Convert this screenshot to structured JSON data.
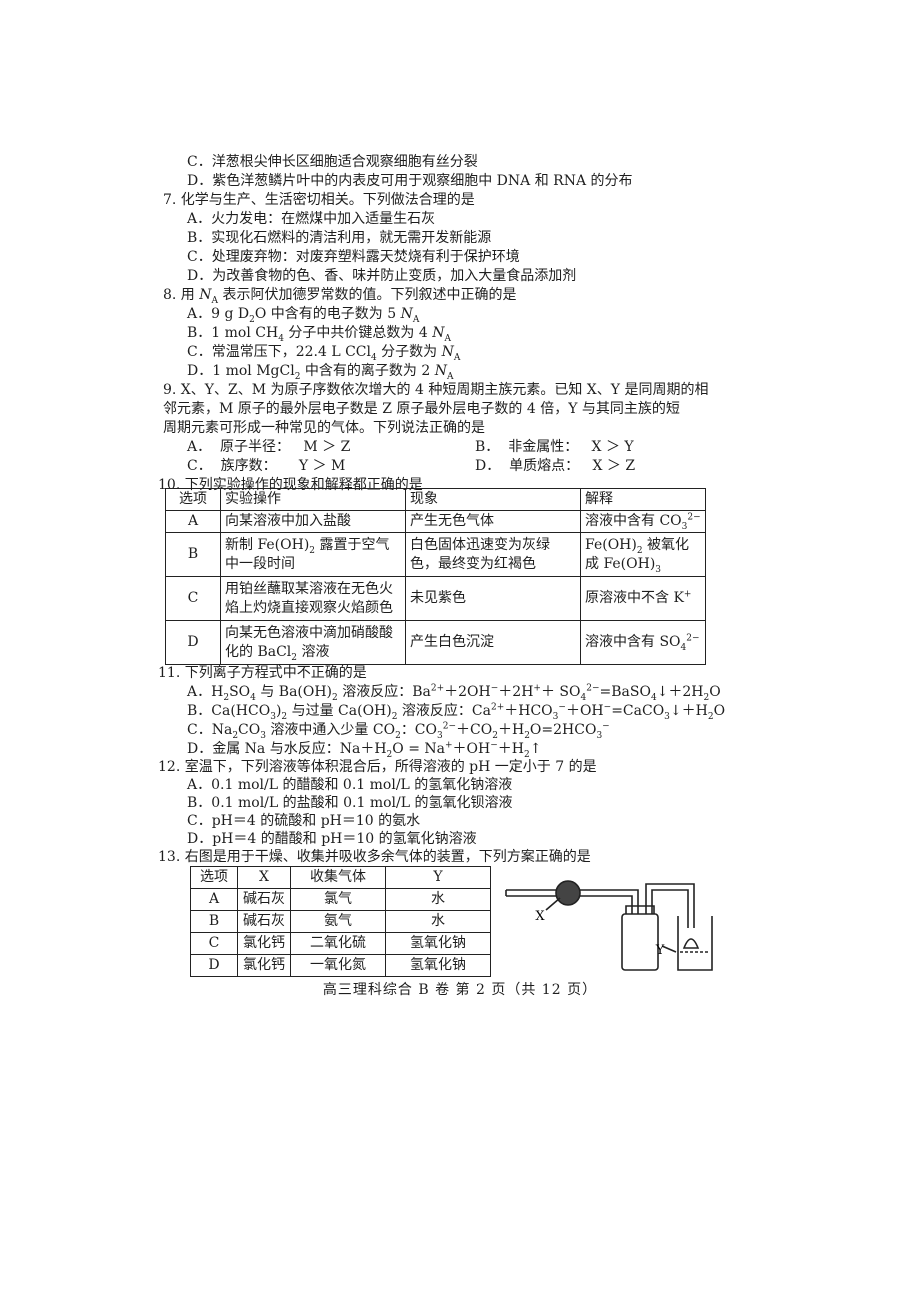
{
  "q6_tail": {
    "options": [
      "C．洋葱根尖伸长区细胞适合观察细胞有丝分裂",
      "D．紫色洋葱鳞片叶中的内表皮可用于观察细胞中 DNA 和 RNA 的分布"
    ]
  },
  "q7": {
    "stem": "7. 化学与生产、生活密切相关。下列做法合理的是",
    "options": [
      "A．火力发电：在燃煤中加入适量生石灰",
      "B．实现化石燃料的清洁利用，就无需开发新能源",
      "C．处理废弃物：对废弃塑料露天焚烧有利于保护环境",
      "D．为改善食物的色、香、味并防止变质，加入大量食品添加剂"
    ]
  },
  "q8": {
    "stem": [
      "8. 用 ",
      {
        "i": "N"
      },
      {
        "sub": "A"
      },
      " 表示阿伏加德罗常数的值。下列叙述中正确的是"
    ],
    "options": [
      [
        "A．9 g D",
        {
          "sub": "2"
        },
        "O 中含有的电子数为 5 ",
        {
          "i": "N"
        },
        {
          "sub": "A"
        }
      ],
      [
        "B．1 mol CH",
        {
          "sub": "4"
        },
        " 分子中共价键总数为 4 ",
        {
          "i": "N"
        },
        {
          "sub": "A"
        }
      ],
      [
        "C．常温常压下，22.4 L CCl",
        {
          "sub": "4"
        },
        " 分子数为 ",
        {
          "i": "N"
        },
        {
          "sub": "A"
        }
      ],
      [
        "D．1 mol MgCl",
        {
          "sub": "2"
        },
        " 中含有的离子数为 2 ",
        {
          "i": "N"
        },
        {
          "sub": "A"
        }
      ]
    ]
  },
  "q9": {
    "stem": [
      "9. X、Y、Z、M 为原子序数依次增大的 4 种短周期主族元素。已知 X、Y 是同周期的相",
      "邻元素，M 原子的最外层电子数是 Z 原子最外层电子数的 4 倍，Y 与其同主族的短",
      "周期元素可形成一种常见的气体。下列说法正确的是"
    ],
    "options": [
      "A．  原子半径：   M ＞ Z",
      "B．  非金属性：   X ＞ Y",
      "C．  族序数：     Y ＞ M",
      "D．  单质熔点：   X ＞ Z"
    ]
  },
  "q10": {
    "stem": "10. 下列实验操作的现象和解释都正确的是",
    "table": {
      "header": [
        "选项",
        "实验操作",
        "现象",
        "解释"
      ],
      "rows": [
        [
          "A",
          "向某溶液中加入盐酸",
          "产生无色气体",
          [
            "溶液中含有 CO",
            {
              "sub": "3"
            },
            {
              "sup": "2−"
            }
          ]
        ],
        [
          "B",
          [
            "新制 Fe(OH)",
            {
              "sub": "2"
            },
            " 露置于空气中一段时间"
          ],
          "白色固体迅速变为灰绿色，最终变为红褐色",
          [
            "Fe(OH)",
            {
              "sub": "2"
            },
            " 被氧化成 Fe(OH)",
            {
              "sub": "3"
            }
          ]
        ],
        [
          "C",
          "用铂丝蘸取某溶液在无色火焰上灼烧直接观察火焰颜色",
          "未见紫色",
          [
            "原溶液中不含 K",
            {
              "sup": "+"
            }
          ]
        ],
        [
          "D",
          [
            "向某无色溶液中滴加硝酸酸化的 BaCl",
            {
              "sub": "2"
            },
            " 溶液"
          ],
          "产生白色沉淀",
          [
            "溶液中含有 SO",
            {
              "sub": "4"
            },
            {
              "sup": "2−"
            }
          ]
        ]
      ]
    }
  },
  "q11": {
    "stem": "11. 下列离子方程式中不正确的是",
    "options": [
      [
        "A．H",
        {
          "sub": "2"
        },
        "SO",
        {
          "sub": "4"
        },
        " 与 Ba(OH)",
        {
          "sub": "2"
        },
        " 溶液反应：Ba",
        {
          "sup": "2+"
        },
        "＋2OH",
        {
          "sup": "−"
        },
        "＋2H",
        {
          "sup": "+"
        },
        "＋ SO",
        {
          "sub": "4"
        },
        {
          "sup": "2−"
        },
        "=BaSO",
        {
          "sub": "4"
        },
        "↓＋2H",
        {
          "sub": "2"
        },
        "O"
      ],
      [
        "B．Ca(HCO",
        {
          "sub": "3"
        },
        ")",
        {
          "sub": "2"
        },
        " 与过量 Ca(OH)",
        {
          "sub": "2"
        },
        " 溶液反应：Ca",
        {
          "sup": "2+"
        },
        "＋HCO",
        {
          "sub": "3"
        },
        {
          "sup": "−"
        },
        "＋OH",
        {
          "sup": "−"
        },
        "=CaCO",
        {
          "sub": "3"
        },
        "↓＋H",
        {
          "sub": "2"
        },
        "O"
      ],
      [
        "C．Na",
        {
          "sub": "2"
        },
        "CO",
        {
          "sub": "3"
        },
        " 溶液中通入少量 CO",
        {
          "sub": "2"
        },
        "：CO",
        {
          "sub": "3"
        },
        {
          "sup": "2−"
        },
        "＋CO",
        {
          "sub": "2"
        },
        "＋H",
        {
          "sub": "2"
        },
        "O=2HCO",
        {
          "sub": "3"
        },
        {
          "sup": "−"
        }
      ],
      [
        "D．金属 Na 与水反应：Na＋H",
        {
          "sub": "2"
        },
        "O = Na",
        {
          "sup": "+"
        },
        "＋OH",
        {
          "sup": "−"
        },
        "＋H",
        {
          "sub": "2"
        },
        "↑"
      ]
    ]
  },
  "q12": {
    "stem": "12. 室温下，下列溶液等体积混合后，所得溶液的 pH 一定小于 7 的是",
    "options": [
      "A．0.1 mol/L 的醋酸和 0.1 mol/L 的氢氧化钠溶液",
      "B．0.1 mol/L 的盐酸和 0.1 mol/L 的氢氧化钡溶液",
      "C．pH＝4 的硫酸和 pH＝10 的氨水",
      "D．pH＝4 的醋酸和 pH＝10 的氢氧化钠溶液"
    ]
  },
  "q13": {
    "stem": "13. 右图是用于干燥、收集并吸收多余气体的装置，下列方案正确的是",
    "table": {
      "header": [
        "选项",
        "X",
        "收集气体",
        "Y"
      ],
      "rows": [
        [
          "A",
          "碱石灰",
          "氯气",
          "水"
        ],
        [
          "B",
          "碱石灰",
          "氨气",
          "水"
        ],
        [
          "C",
          "氯化钙",
          "二氧化硫",
          "氢氧化钠"
        ],
        [
          "D",
          "氯化钙",
          "一氧化氮",
          "氢氧化钠"
        ]
      ]
    },
    "figure": {
      "x_label": "X",
      "y_label": "Y"
    }
  },
  "footer": "高三理科综合 B 卷 第 2 页（共 12 页）"
}
